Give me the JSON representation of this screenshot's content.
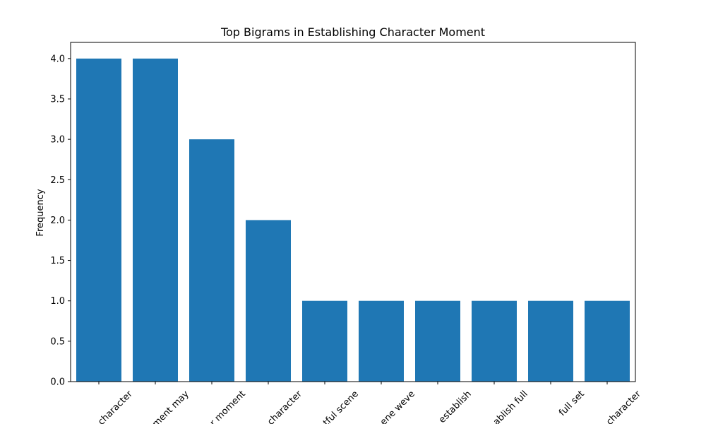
{
  "chart_data": {
    "type": "bar",
    "title": "Top Bigrams in Establishing Character Moment",
    "xlabel": "",
    "ylabel": "Frequency",
    "categories": [
      "establishing character",
      "character moment may",
      "establishing character moment",
      "delightful character",
      "delightful scene",
      "scene weve",
      "weve establish",
      "establish full",
      "full set",
      "set character"
    ],
    "tick_labels_visible": [
      "character",
      "ment may",
      "r moment",
      "character",
      "tful scene",
      "ene weve",
      "establish",
      "ablish full",
      "full set",
      "character"
    ],
    "values": [
      4,
      4,
      3,
      2,
      1,
      1,
      1,
      1,
      1,
      1
    ],
    "ylim": [
      0,
      4.2
    ],
    "yticks": [
      0.0,
      0.5,
      1.0,
      1.5,
      2.0,
      2.5,
      3.0,
      3.5,
      4.0
    ],
    "ytick_labels": [
      "0.0",
      "0.5",
      "1.0",
      "1.5",
      "2.0",
      "2.5",
      "3.0",
      "3.5",
      "4.0"
    ],
    "grid": false,
    "legend": "none",
    "bar_color": "#1f77b4"
  }
}
